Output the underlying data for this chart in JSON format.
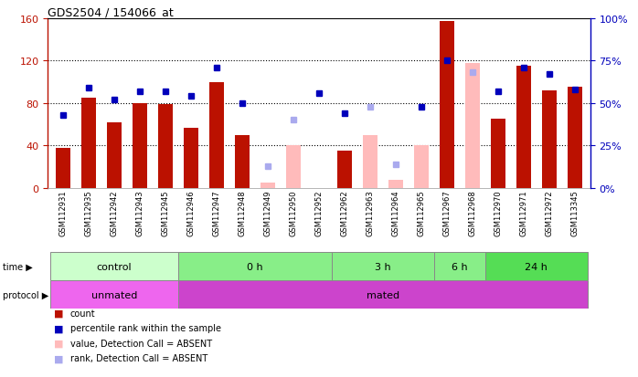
{
  "title": "GDS2504 / 154066_at",
  "samples": [
    "GSM112931",
    "GSM112935",
    "GSM112942",
    "GSM112943",
    "GSM112945",
    "GSM112946",
    "GSM112947",
    "GSM112948",
    "GSM112949",
    "GSM112950",
    "GSM112952",
    "GSM112962",
    "GSM112963",
    "GSM112964",
    "GSM112965",
    "GSM112967",
    "GSM112968",
    "GSM112970",
    "GSM112971",
    "GSM112972",
    "GSM113345"
  ],
  "count_values": [
    38,
    85,
    62,
    80,
    79,
    57,
    100,
    50,
    null,
    null,
    null,
    35,
    null,
    null,
    null,
    157,
    null,
    65,
    115,
    92,
    95
  ],
  "count_absent": [
    null,
    null,
    null,
    null,
    null,
    null,
    null,
    null,
    5,
    40,
    null,
    null,
    50,
    8,
    40,
    null,
    118,
    null,
    null,
    null,
    null
  ],
  "rank_values_pct": [
    43,
    59,
    52,
    57,
    57,
    54,
    71,
    50,
    null,
    null,
    56,
    44,
    null,
    null,
    48,
    75,
    null,
    57,
    71,
    67,
    58
  ],
  "rank_absent_pct": [
    null,
    null,
    null,
    null,
    null,
    null,
    null,
    null,
    13,
    40,
    null,
    null,
    48,
    14,
    null,
    null,
    68,
    null,
    null,
    null,
    null
  ],
  "left_ylim": [
    0,
    160
  ],
  "right_ylim": [
    0,
    100
  ],
  "left_yticks": [
    0,
    40,
    80,
    120,
    160
  ],
  "right_yticks": [
    0,
    25,
    50,
    75,
    100
  ],
  "right_yticklabels": [
    "0%",
    "25%",
    "50%",
    "75%",
    "100%"
  ],
  "time_groups": [
    {
      "label": "control",
      "start": 0,
      "end": 5,
      "color": "#ccffcc"
    },
    {
      "label": "0 h",
      "start": 5,
      "end": 11,
      "color": "#88ee88"
    },
    {
      "label": "3 h",
      "start": 11,
      "end": 15,
      "color": "#88ee88"
    },
    {
      "label": "6 h",
      "start": 15,
      "end": 17,
      "color": "#88ee88"
    },
    {
      "label": "24 h",
      "start": 17,
      "end": 21,
      "color": "#55dd55"
    }
  ],
  "protocol_groups": [
    {
      "label": "unmated",
      "start": 0,
      "end": 5,
      "color": "#ee66ee"
    },
    {
      "label": "mated",
      "start": 5,
      "end": 21,
      "color": "#cc44cc"
    }
  ],
  "bar_color": "#bb1100",
  "bar_absent_color": "#ffbbbb",
  "rank_color": "#0000bb",
  "rank_absent_color": "#aaaaee",
  "background_color": "#ffffff"
}
